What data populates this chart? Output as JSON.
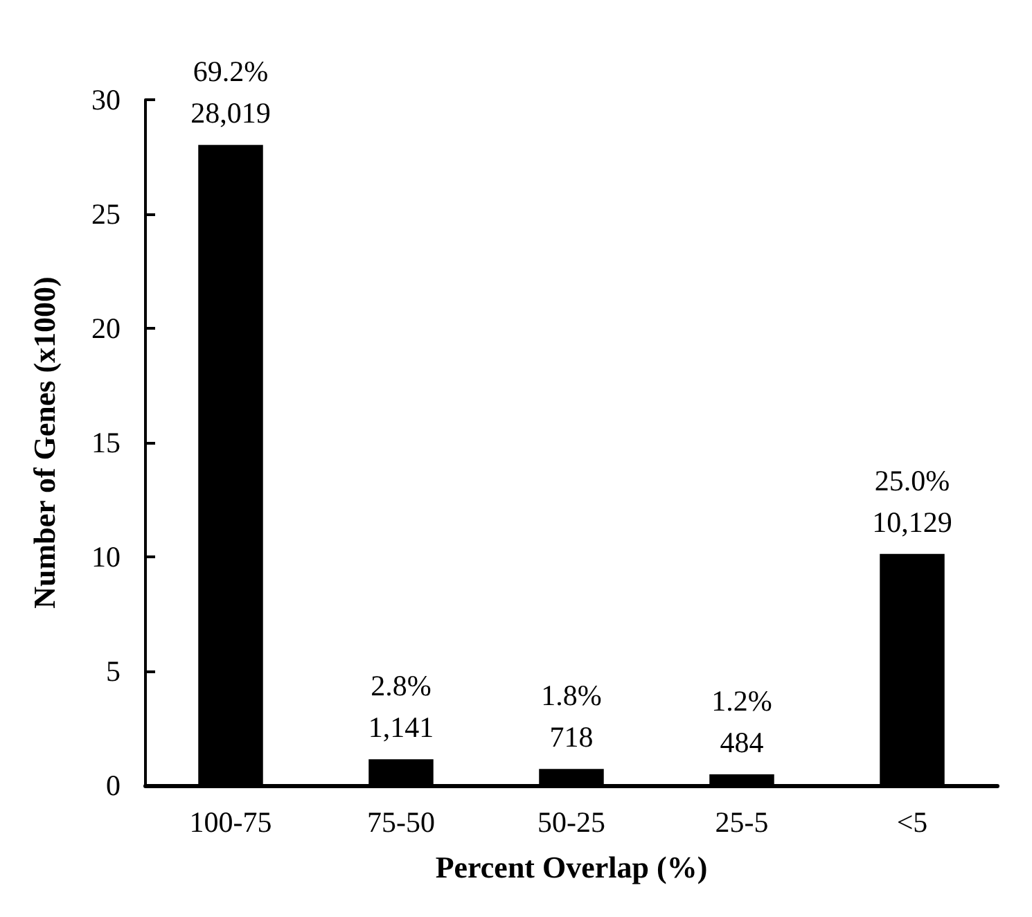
{
  "chart_data": {
    "type": "bar",
    "xlabel": "Percent Overlap (%)",
    "ylabel": "Number of Genes (x1000)",
    "categories": [
      "100-75",
      "75-50",
      "50-25",
      "25-5",
      "<5"
    ],
    "values": [
      28.019,
      1.141,
      0.718,
      0.484,
      10.129
    ],
    "annotations": [
      {
        "text": "69.2%\n28,019",
        "x": "100-75",
        "y": 28.019
      },
      {
        "text": "2.8%\n1,141",
        "x": "75-50",
        "y": 1.141
      },
      {
        "text": "1.8%\n718",
        "x": "50-25",
        "y": 0.718
      },
      {
        "text": "1.2%\n484",
        "x": "25-5",
        "y": 0.484
      },
      {
        "text": "25.0%\n10,129",
        "x": "<5",
        "y": 10.129
      }
    ],
    "color": "#000000",
    "ylim": [
      0,
      30
    ],
    "yticks": [
      0,
      5,
      10,
      15,
      20,
      25,
      30
    ],
    "grid": false
  }
}
